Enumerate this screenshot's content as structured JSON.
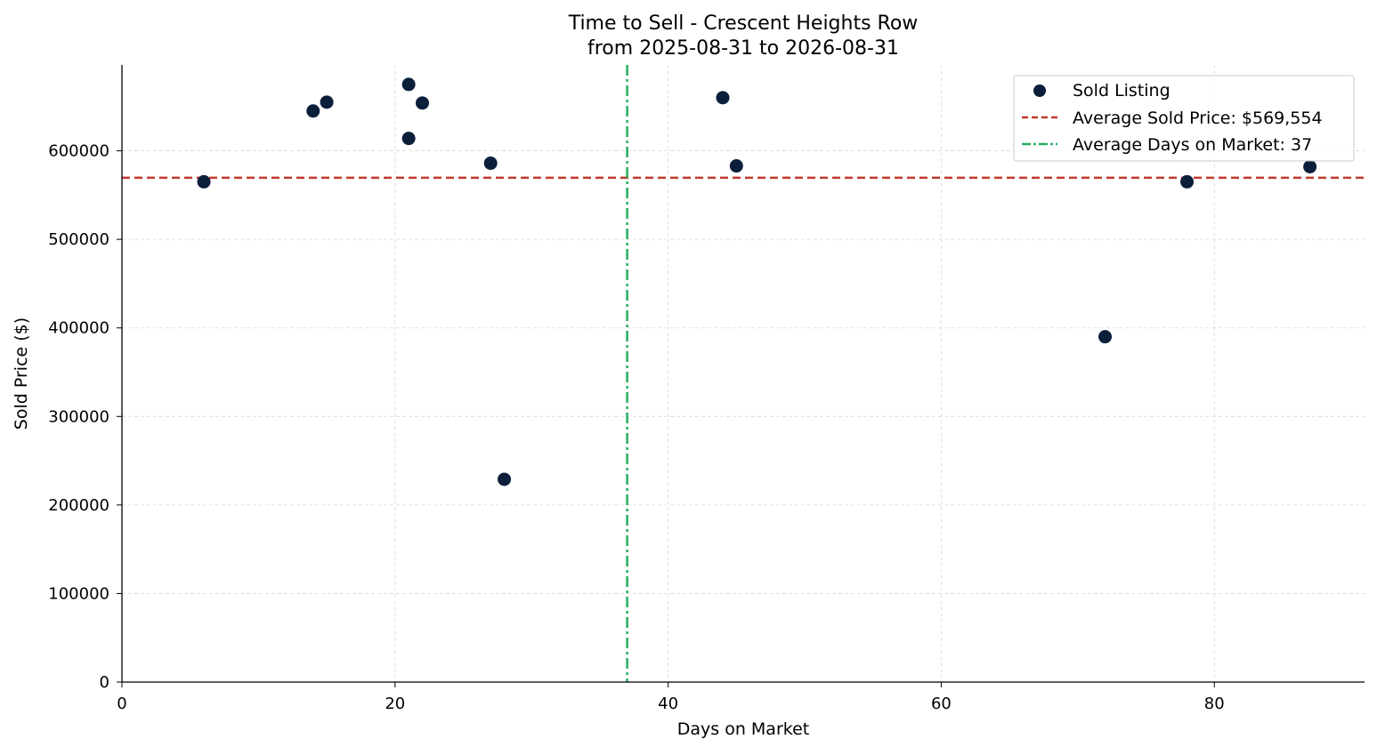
{
  "chart_data": {
    "type": "scatter",
    "title": "Time to Sell - Crescent Heights Row",
    "subtitle": "from 2025-08-31 to 2026-08-31",
    "xlabel": "Days on Market",
    "ylabel": "Sold Price ($)",
    "xlim": [
      0,
      91
    ],
    "ylim": [
      0,
      697000
    ],
    "x_ticks": [
      0,
      20,
      40,
      60,
      80
    ],
    "y_ticks": [
      0,
      100000,
      200000,
      300000,
      400000,
      500000,
      600000
    ],
    "grid": true,
    "legend_position": "top-right",
    "series": [
      {
        "name": "Sold Listing",
        "color": "#0b1f3a",
        "points": [
          {
            "x": 6,
            "y": 565000
          },
          {
            "x": 14,
            "y": 645000
          },
          {
            "x": 15,
            "y": 655000
          },
          {
            "x": 21,
            "y": 675000
          },
          {
            "x": 21,
            "y": 614000
          },
          {
            "x": 22,
            "y": 654000
          },
          {
            "x": 27,
            "y": 586000
          },
          {
            "x": 28,
            "y": 229000
          },
          {
            "x": 44,
            "y": 660000
          },
          {
            "x": 45,
            "y": 583000
          },
          {
            "x": 72,
            "y": 390000
          },
          {
            "x": 78,
            "y": 565000
          },
          {
            "x": 87,
            "y": 582000
          }
        ]
      }
    ],
    "reference_lines": [
      {
        "name": "Average Sold Price: $569,554",
        "orientation": "horizontal",
        "value": 569554,
        "color": "#c0392b",
        "style": "dashed"
      },
      {
        "name": "Average Days on Market: 37",
        "orientation": "vertical",
        "value": 37,
        "color": "#27ae60",
        "style": "dashdot"
      }
    ]
  }
}
